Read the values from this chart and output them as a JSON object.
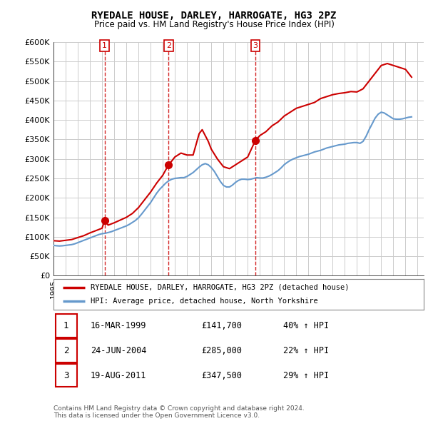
{
  "title": "RYEDALE HOUSE, DARLEY, HARROGATE, HG3 2PZ",
  "subtitle": "Price paid vs. HM Land Registry's House Price Index (HPI)",
  "red_label": "RYEDALE HOUSE, DARLEY, HARROGATE, HG3 2PZ (detached house)",
  "blue_label": "HPI: Average price, detached house, North Yorkshire",
  "ylim": [
    0,
    600000
  ],
  "yticks": [
    0,
    50000,
    100000,
    150000,
    200000,
    250000,
    300000,
    350000,
    400000,
    450000,
    500000,
    550000,
    600000
  ],
  "ytick_labels": [
    "£0",
    "£50K",
    "£100K",
    "£150K",
    "£200K",
    "£250K",
    "£300K",
    "£350K",
    "£400K",
    "£450K",
    "£500K",
    "£550K",
    "£600K"
  ],
  "xlim_start": 1995.0,
  "xlim_end": 2025.5,
  "sales": [
    {
      "num": 1,
      "date": "16-MAR-1999",
      "price": 141700,
      "pct": "40%",
      "x": 1999.21
    },
    {
      "num": 2,
      "date": "24-JUN-2004",
      "price": 285000,
      "pct": "22%",
      "x": 2004.48
    },
    {
      "num": 3,
      "date": "19-AUG-2011",
      "price": 347500,
      "pct": "29%",
      "x": 2011.63
    }
  ],
  "footnote": "Contains HM Land Registry data © Crown copyright and database right 2024.\nThis data is licensed under the Open Government Licence v3.0.",
  "hpi_data": {
    "x": [
      1995.0,
      1995.25,
      1995.5,
      1995.75,
      1996.0,
      1996.25,
      1996.5,
      1996.75,
      1997.0,
      1997.25,
      1997.5,
      1997.75,
      1998.0,
      1998.25,
      1998.5,
      1998.75,
      1999.0,
      1999.25,
      1999.5,
      1999.75,
      2000.0,
      2000.25,
      2000.5,
      2000.75,
      2001.0,
      2001.25,
      2001.5,
      2001.75,
      2002.0,
      2002.25,
      2002.5,
      2002.75,
      2003.0,
      2003.25,
      2003.5,
      2003.75,
      2004.0,
      2004.25,
      2004.5,
      2004.75,
      2005.0,
      2005.25,
      2005.5,
      2005.75,
      2006.0,
      2006.25,
      2006.5,
      2006.75,
      2007.0,
      2007.25,
      2007.5,
      2007.75,
      2008.0,
      2008.25,
      2008.5,
      2008.75,
      2009.0,
      2009.25,
      2009.5,
      2009.75,
      2010.0,
      2010.25,
      2010.5,
      2010.75,
      2011.0,
      2011.25,
      2011.5,
      2011.75,
      2012.0,
      2012.25,
      2012.5,
      2012.75,
      2013.0,
      2013.25,
      2013.5,
      2013.75,
      2014.0,
      2014.25,
      2014.5,
      2014.75,
      2015.0,
      2015.25,
      2015.5,
      2015.75,
      2016.0,
      2016.25,
      2016.5,
      2016.75,
      2017.0,
      2017.25,
      2017.5,
      2017.75,
      2018.0,
      2018.25,
      2018.5,
      2018.75,
      2019.0,
      2019.25,
      2019.5,
      2019.75,
      2020.0,
      2020.25,
      2020.5,
      2020.75,
      2021.0,
      2021.25,
      2021.5,
      2021.75,
      2022.0,
      2022.25,
      2022.5,
      2022.75,
      2023.0,
      2023.25,
      2023.5,
      2023.75,
      2024.0,
      2024.25,
      2024.5
    ],
    "y": [
      78000,
      77000,
      76500,
      77000,
      78000,
      79000,
      80000,
      82000,
      85000,
      88000,
      91000,
      94000,
      97000,
      100000,
      103000,
      106000,
      108000,
      109000,
      111000,
      113000,
      116000,
      119000,
      122000,
      125000,
      128000,
      132000,
      137000,
      142000,
      149000,
      158000,
      168000,
      178000,
      188000,
      200000,
      212000,
      222000,
      230000,
      238000,
      244000,
      248000,
      250000,
      251000,
      252000,
      252000,
      255000,
      260000,
      265000,
      272000,
      279000,
      285000,
      288000,
      285000,
      278000,
      268000,
      255000,
      242000,
      232000,
      228000,
      228000,
      233000,
      240000,
      245000,
      248000,
      248000,
      247000,
      248000,
      250000,
      252000,
      251000,
      251000,
      253000,
      256000,
      260000,
      265000,
      270000,
      277000,
      285000,
      291000,
      296000,
      300000,
      303000,
      306000,
      308000,
      310000,
      312000,
      315000,
      318000,
      320000,
      322000,
      325000,
      328000,
      330000,
      332000,
      334000,
      336000,
      337000,
      338000,
      340000,
      341000,
      342000,
      342000,
      340000,
      345000,
      358000,
      375000,
      390000,
      405000,
      415000,
      420000,
      418000,
      413000,
      408000,
      403000,
      402000,
      402000,
      403000,
      405000,
      407000,
      408000
    ]
  },
  "red_data": {
    "x": [
      1995.0,
      1995.5,
      1996.0,
      1996.5,
      1997.0,
      1997.5,
      1998.0,
      1998.5,
      1999.0,
      1999.21,
      1999.5,
      2000.0,
      2000.5,
      2001.0,
      2001.5,
      2002.0,
      2002.5,
      2003.0,
      2003.5,
      2004.0,
      2004.48,
      2004.75,
      2005.0,
      2005.5,
      2006.0,
      2006.5,
      2007.0,
      2007.25,
      2007.5,
      2007.75,
      2008.0,
      2008.5,
      2009.0,
      2009.5,
      2010.0,
      2010.5,
      2011.0,
      2011.63,
      2012.0,
      2012.5,
      2013.0,
      2013.5,
      2014.0,
      2014.5,
      2015.0,
      2015.5,
      2016.0,
      2016.5,
      2017.0,
      2017.5,
      2018.0,
      2018.5,
      2019.0,
      2019.5,
      2020.0,
      2020.5,
      2021.0,
      2021.5,
      2022.0,
      2022.5,
      2023.0,
      2023.5,
      2024.0,
      2024.5
    ],
    "y": [
      90000,
      89000,
      91000,
      93000,
      98000,
      103000,
      110000,
      116000,
      122000,
      141700,
      130000,
      136000,
      143000,
      150000,
      160000,
      175000,
      195000,
      215000,
      238000,
      258000,
      285000,
      295000,
      305000,
      315000,
      310000,
      310000,
      365000,
      375000,
      360000,
      345000,
      325000,
      300000,
      280000,
      275000,
      285000,
      295000,
      305000,
      347500,
      360000,
      370000,
      385000,
      395000,
      410000,
      420000,
      430000,
      435000,
      440000,
      445000,
      455000,
      460000,
      465000,
      468000,
      470000,
      473000,
      472000,
      480000,
      500000,
      520000,
      540000,
      545000,
      540000,
      535000,
      530000,
      510000
    ]
  },
  "background_color": "#ffffff",
  "grid_color": "#cccccc",
  "red_color": "#cc0000",
  "blue_color": "#6699cc",
  "marker_box_color": "#cc0000"
}
